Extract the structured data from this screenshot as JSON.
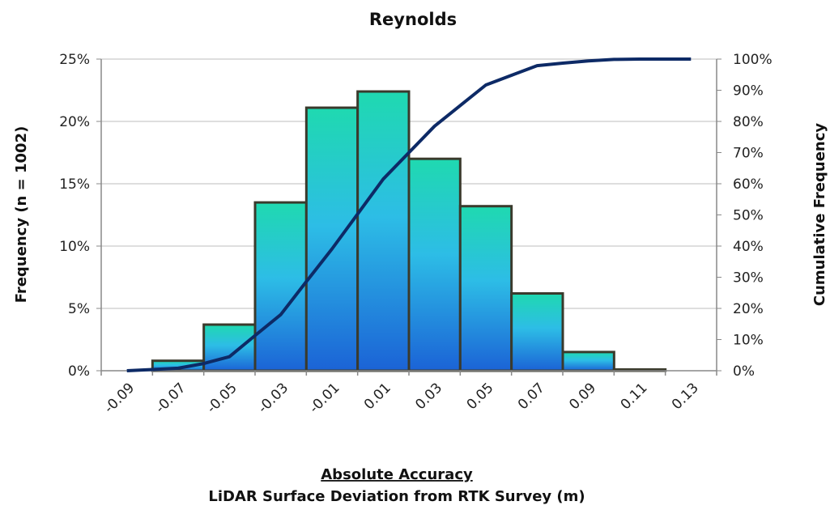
{
  "chart_data": {
    "type": "bar",
    "title": "Reynolds",
    "xlabel_line1": "Absolute Accuracy",
    "xlabel_line2": "LiDAR Surface Deviation from RTK Survey (m)",
    "ylabel_left": "Frequency (n = 1002)",
    "ylabel_right": "Cumulative Frequency",
    "categories": [
      "-0.09",
      "-0.07",
      "-0.05",
      "-0.03",
      "-0.01",
      "0.01",
      "0.03",
      "0.05",
      "0.07",
      "0.09",
      "0.11",
      "0.13"
    ],
    "ylim_left": [
      0,
      25
    ],
    "ylim_right": [
      0,
      100
    ],
    "left_ticks": [
      "0%",
      "5%",
      "10%",
      "15%",
      "20%",
      "25%"
    ],
    "left_tick_values": [
      0,
      5,
      10,
      15,
      20,
      25
    ],
    "right_ticks": [
      "0%",
      "10%",
      "20%",
      "30%",
      "40%",
      "50%",
      "60%",
      "70%",
      "80%",
      "90%",
      "100%"
    ],
    "right_tick_values": [
      0,
      10,
      20,
      30,
      40,
      50,
      60,
      70,
      80,
      90,
      100
    ],
    "bars": {
      "name": "Frequency",
      "values": [
        0.8,
        3.7,
        13.5,
        21.1,
        22.4,
        17.0,
        13.2,
        6.2,
        1.5,
        0.1
      ],
      "bin_start_index": 1
    },
    "cumulative": {
      "name": "Cumulative Frequency",
      "x": [
        -0.09,
        -0.08,
        -0.07,
        -0.06,
        -0.05,
        -0.04,
        -0.03,
        -0.02,
        -0.01,
        0.0,
        0.01,
        0.02,
        0.03,
        0.04,
        0.05,
        0.06,
        0.07,
        0.08,
        0.09,
        0.1,
        0.11,
        0.12,
        0.13
      ],
      "values": [
        0,
        0.4,
        0.8,
        2.3,
        4.5,
        11.3,
        18.0,
        28.6,
        39.1,
        50.3,
        61.5,
        70.0,
        78.5,
        85.1,
        91.7,
        94.8,
        97.9,
        98.7,
        99.4,
        99.9,
        100,
        100,
        100
      ]
    },
    "grid": true,
    "colors": {
      "bar_top": "#1fd9b0",
      "bar_mid": "#2dbde6",
      "bar_bottom": "#1b63d6",
      "bar_stroke": "#3a3a2c",
      "line": "#0d2a66",
      "grid": "#bdbdbd"
    }
  }
}
